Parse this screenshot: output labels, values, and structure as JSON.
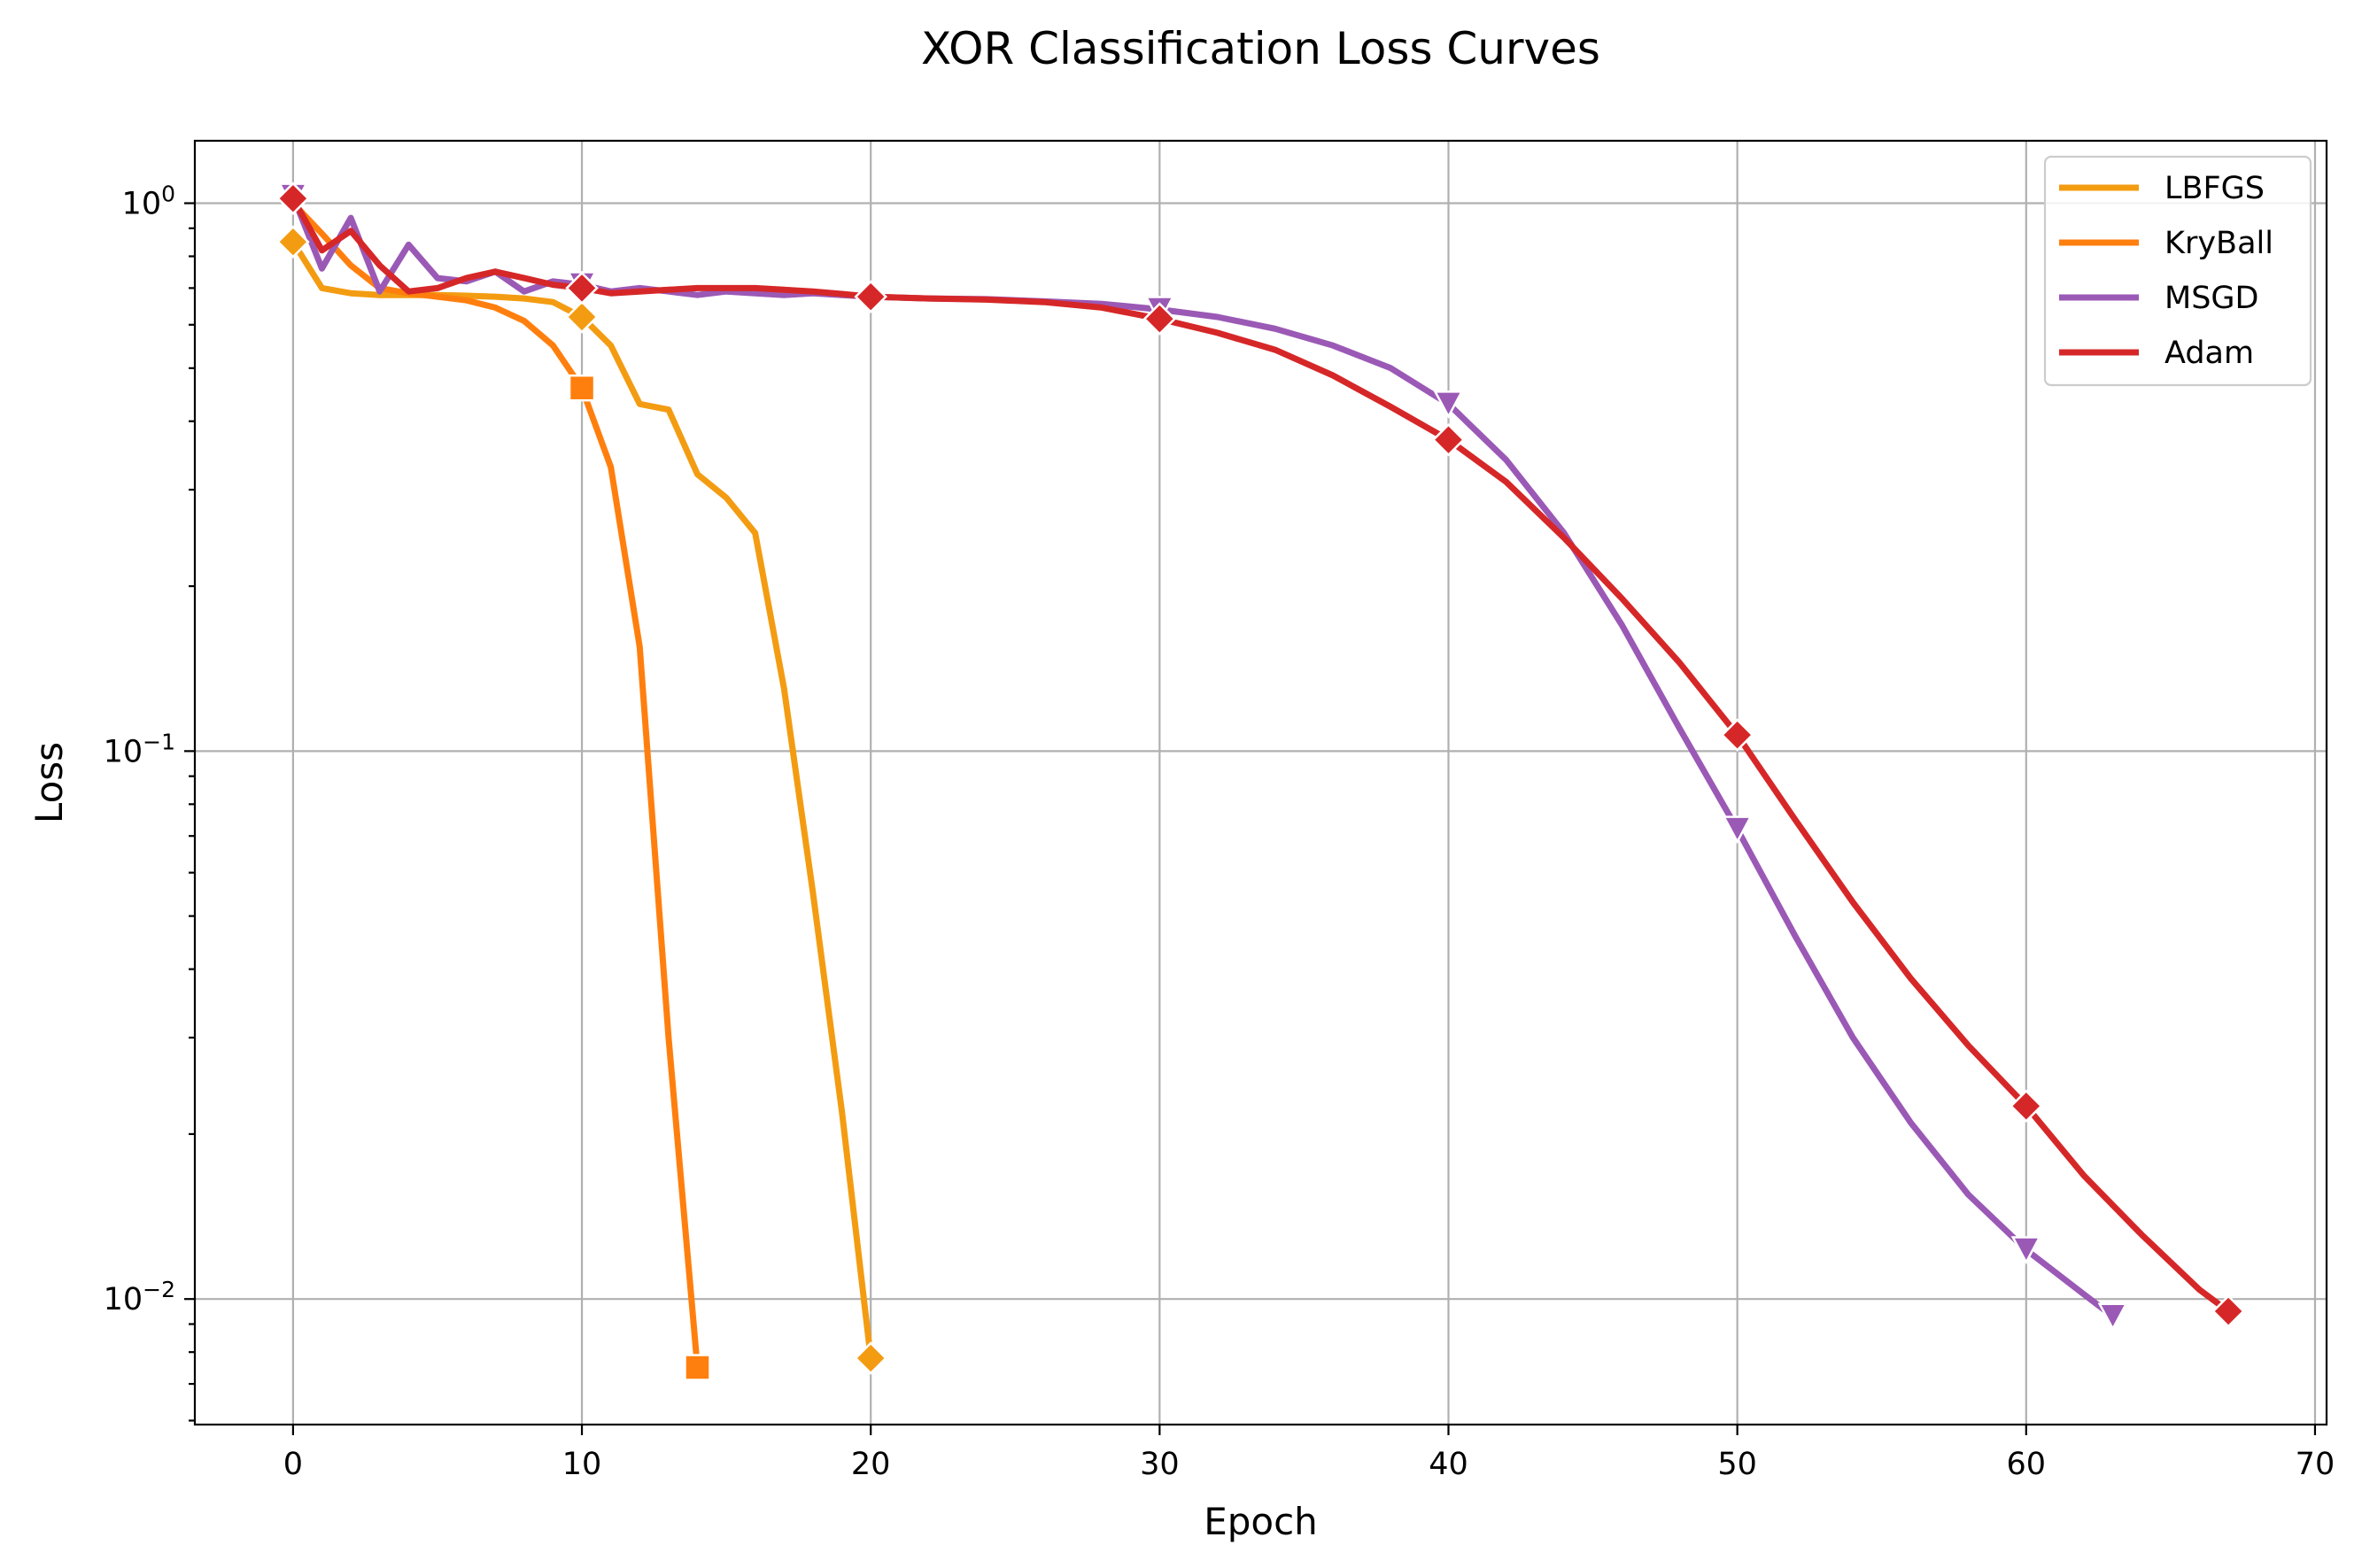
{
  "chart_data": {
    "type": "line",
    "title": "XOR Classification Loss Curves",
    "xlabel": "Epoch",
    "ylabel": "Loss",
    "xlim": [
      -3.4,
      70.4
    ],
    "ylim": [
      0.0059,
      1.3
    ],
    "yscale": "log",
    "grid": true,
    "legend": "top-right",
    "x_ticks": [
      0,
      10,
      20,
      30,
      40,
      50,
      60,
      70
    ],
    "y_ticks": [
      {
        "value": 1,
        "base": "10",
        "exp": "0"
      },
      {
        "value": 0.1,
        "base": "10",
        "exp": "−1"
      },
      {
        "value": 0.01,
        "base": "10",
        "exp": "−2"
      }
    ],
    "series": [
      {
        "name": "LBFGS",
        "color": "#f39c12",
        "marker": "diamond",
        "x": [
          0,
          1,
          2,
          3,
          4,
          5,
          6,
          7,
          8,
          9,
          10,
          11,
          12,
          13,
          14,
          15,
          16,
          17,
          18,
          19,
          20
        ],
        "y": [
          0.85,
          0.7,
          0.685,
          0.68,
          0.68,
          0.68,
          0.678,
          0.675,
          0.67,
          0.66,
          0.62,
          0.55,
          0.43,
          0.42,
          0.32,
          0.29,
          0.25,
          0.13,
          0.055,
          0.022,
          0.0078
        ]
      },
      {
        "name": "KryBall",
        "color": "#ff7f0e",
        "marker": "square",
        "x": [
          0,
          1,
          2,
          3,
          4,
          5,
          6,
          7,
          8,
          9,
          10,
          11,
          12,
          13,
          14
        ],
        "y": [
          1.0,
          0.88,
          0.77,
          0.7,
          0.685,
          0.675,
          0.665,
          0.645,
          0.61,
          0.55,
          0.46,
          0.33,
          0.155,
          0.03,
          0.0075
        ]
      },
      {
        "name": "MSGD",
        "color": "#9b59b6",
        "marker": "triangle-down",
        "x": [
          0,
          1,
          2,
          3,
          4,
          5,
          6,
          7,
          8,
          9,
          10,
          11,
          12,
          13,
          14,
          15,
          16,
          17,
          18,
          19,
          20,
          22,
          24,
          26,
          28,
          30,
          32,
          34,
          36,
          38,
          40,
          42,
          44,
          46,
          48,
          50,
          52,
          54,
          56,
          58,
          60,
          62,
          63
        ],
        "y": [
          1.03,
          0.76,
          0.94,
          0.69,
          0.84,
          0.73,
          0.72,
          0.75,
          0.69,
          0.72,
          0.71,
          0.69,
          0.7,
          0.69,
          0.68,
          0.69,
          0.685,
          0.68,
          0.685,
          0.68,
          0.675,
          0.67,
          0.668,
          0.662,
          0.655,
          0.64,
          0.62,
          0.59,
          0.55,
          0.5,
          0.43,
          0.34,
          0.25,
          0.17,
          0.11,
          0.072,
          0.046,
          0.03,
          0.021,
          0.0155,
          0.0123,
          0.0102,
          0.0093
        ]
      },
      {
        "name": "Adam",
        "color": "#d62728",
        "marker": "diamond",
        "x": [
          0,
          1,
          2,
          3,
          4,
          5,
          6,
          7,
          8,
          9,
          10,
          11,
          12,
          13,
          14,
          15,
          16,
          17,
          18,
          19,
          20,
          22,
          24,
          26,
          28,
          30,
          32,
          34,
          36,
          38,
          40,
          42,
          44,
          46,
          48,
          50,
          52,
          54,
          56,
          58,
          60,
          62,
          64,
          66,
          67
        ],
        "y": [
          1.02,
          0.82,
          0.89,
          0.77,
          0.69,
          0.7,
          0.73,
          0.75,
          0.73,
          0.71,
          0.7,
          0.685,
          0.69,
          0.695,
          0.7,
          0.7,
          0.7,
          0.695,
          0.69,
          0.683,
          0.675,
          0.67,
          0.667,
          0.66,
          0.645,
          0.615,
          0.58,
          0.54,
          0.485,
          0.425,
          0.37,
          0.31,
          0.245,
          0.19,
          0.145,
          0.107,
          0.075,
          0.053,
          0.0385,
          0.029,
          0.0225,
          0.0168,
          0.0131,
          0.0104,
          0.0095
        ]
      }
    ],
    "marker_points": [
      {
        "series": "LBFGS",
        "x": [
          0,
          10,
          20
        ]
      },
      {
        "series": "KryBall",
        "x": [
          10,
          14
        ]
      },
      {
        "series": "MSGD",
        "x": [
          0,
          10,
          30,
          40,
          50,
          60,
          63
        ]
      },
      {
        "series": "Adam",
        "x": [
          0,
          10,
          20,
          30,
          40,
          50,
          60,
          67
        ]
      }
    ]
  }
}
